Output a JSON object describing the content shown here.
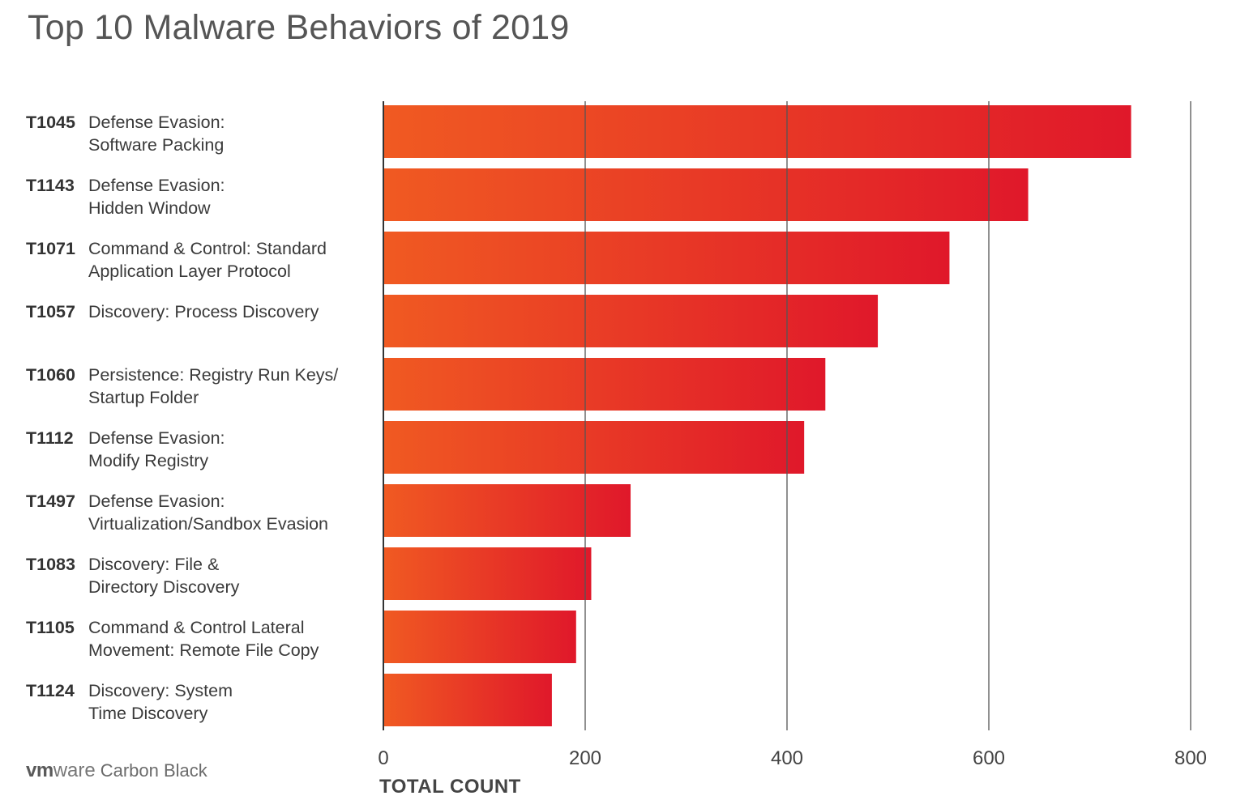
{
  "chart_data": {
    "type": "bar",
    "orientation": "horizontal",
    "title": "Top 10 Malware Behaviors of 2019",
    "xlabel": "TOTAL COUNT",
    "ylabel": "",
    "xlim": [
      0,
      800
    ],
    "xticks": [
      0,
      200,
      400,
      600,
      800
    ],
    "grid": true,
    "bar_color_gradient": [
      "#f05a22",
      "#e0182a"
    ],
    "categories": [
      {
        "code": "T1045",
        "lines": [
          "Defense Evasion:",
          "Software Packing"
        ],
        "value": 741
      },
      {
        "code": "T1143",
        "lines": [
          "Defense Evasion:",
          "Hidden Window"
        ],
        "value": 639
      },
      {
        "code": "T1071",
        "lines": [
          "Command & Control: Standard",
          "Application Layer Protocol"
        ],
        "value": 561
      },
      {
        "code": "T1057",
        "lines": [
          "Discovery: Process Discovery"
        ],
        "value": 490
      },
      {
        "code": "T1060",
        "lines": [
          "Persistence: Registry Run Keys/",
          "Startup Folder"
        ],
        "value": 438
      },
      {
        "code": "T1112",
        "lines": [
          "Defense Evasion:",
          "Modify Registry"
        ],
        "value": 417
      },
      {
        "code": "T1497",
        "lines": [
          "Defense Evasion:",
          "Virtualization/Sandbox Evasion"
        ],
        "value": 245
      },
      {
        "code": "T1083",
        "lines": [
          "Discovery: File &",
          "Directory Discovery"
        ],
        "value": 206
      },
      {
        "code": "T1105",
        "lines": [
          "Command & Control Lateral",
          "Movement: Remote File Copy"
        ],
        "value": 191
      },
      {
        "code": "T1124",
        "lines": [
          "Discovery: System",
          "Time Discovery"
        ],
        "value": 167
      }
    ]
  },
  "logo": {
    "vm": "vm",
    "ware": "ware",
    "product": "Carbon Black"
  }
}
